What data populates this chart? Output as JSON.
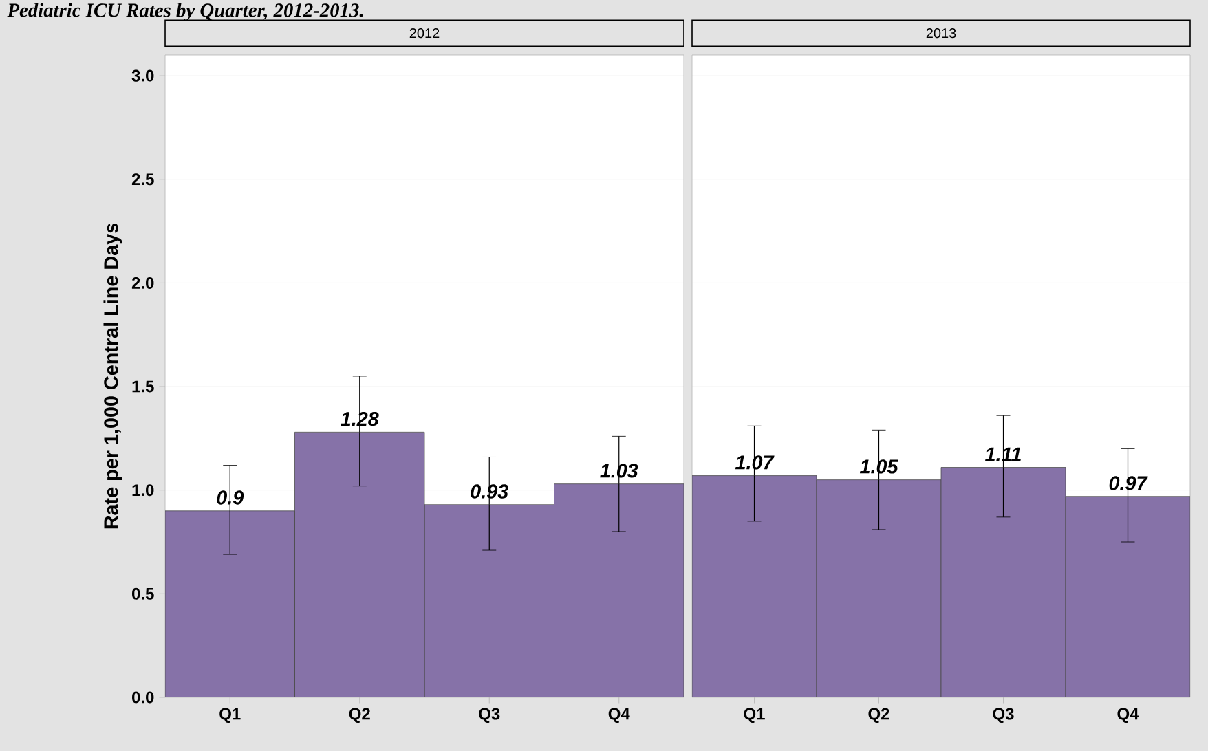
{
  "chart_data": [
    {
      "type": "bar",
      "title": "2012",
      "annotations": [
        "Pediatric ICU Rates by Quarter, 2012-2013."
      ],
      "ylabel": "Rate per 1,000 Central Line Days",
      "categories": [
        "Q1",
        "Q2",
        "Q3",
        "Q4"
      ],
      "values": [
        0.9,
        1.28,
        0.93,
        1.03
      ],
      "errors": [
        [
          0.69,
          1.12
        ],
        [
          1.02,
          1.55
        ],
        [
          0.71,
          1.16
        ],
        [
          0.8,
          1.26
        ]
      ],
      "color": "#8672a8",
      "data_labels": true,
      "ylim": [
        0,
        3.1
      ],
      "yticks": [
        {
          "value": 0,
          "label": "0.0"
        },
        0.5,
        {
          "value": 1,
          "label": "1.0"
        },
        1.5,
        {
          "value": 2,
          "label": "2.0"
        },
        2.5,
        {
          "value": 3,
          "label": "3.0"
        }
      ],
      "grid": "y"
    },
    {
      "type": "bar",
      "title": "2013",
      "categories": [
        "Q1",
        "Q2",
        "Q3",
        "Q4"
      ],
      "values": [
        1.07,
        1.05,
        1.11,
        0.97
      ],
      "errors": [
        [
          0.85,
          1.31
        ],
        [
          0.81,
          1.29
        ],
        [
          0.87,
          1.36
        ],
        [
          0.75,
          1.2
        ]
      ],
      "color": "#8672a8",
      "data_labels": true,
      "ylim": [
        0,
        3.1
      ],
      "yticks": [
        0,
        0.5,
        1,
        1.5,
        2,
        2.5,
        3
      ],
      "grid": "y",
      "tick_labels": "x"
    }
  ]
}
